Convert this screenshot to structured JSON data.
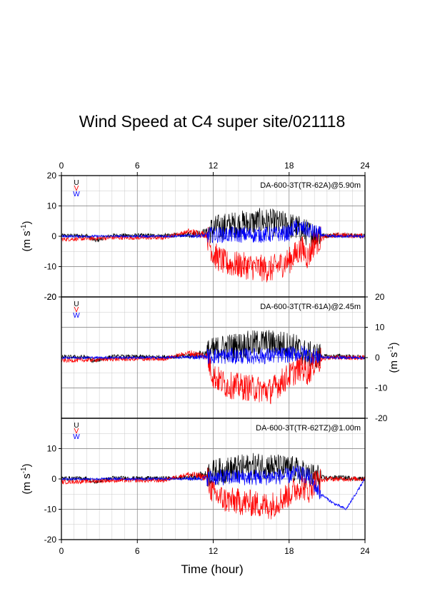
{
  "chart_data": {
    "type": "line",
    "title": "Wind Speed at C4 super site/021118",
    "xlabel": "Time (hour)",
    "x_ticks": [
      0,
      6,
      12,
      18,
      24
    ],
    "xlim": [
      0,
      24
    ],
    "grid": true,
    "legend_placement": "top-left",
    "series_legend": [
      {
        "name": "U",
        "color": "#000000"
      },
      {
        "name": "V",
        "color": "#ff0000"
      },
      {
        "name": "W",
        "color": "#0000ff"
      }
    ],
    "panels": [
      {
        "label": "DA-600-3T(TR-62A)@5.90m",
        "ylabel_main": "(m s",
        "ylabel_sup": "-1",
        "ylabel_end": ")",
        "ylabel_side": "left",
        "ylim": [
          -20,
          20
        ],
        "y_ticks": [
          -20,
          -10,
          0,
          10,
          20
        ],
        "series": [
          {
            "name": "U",
            "color": "#000000",
            "x": [
              0,
              2,
              2.7,
              4,
              8,
              10,
              11.5,
              12.5,
              14,
              16,
              17.5,
              18.5,
              19.5,
              20,
              21,
              22,
              24
            ],
            "y": [
              0.2,
              0.2,
              -1.5,
              0.3,
              0.2,
              0.5,
              1.5,
              3,
              4,
              5,
              4,
              3,
              1,
              0.5,
              0.2,
              0.5,
              0
            ]
          },
          {
            "name": "V",
            "color": "#ff0000",
            "x": [
              0,
              2,
              4,
              8,
              10,
              11.5,
              12,
              13,
              15,
              16.5,
              18,
              19,
              19.5,
              20,
              21,
              22,
              24
            ],
            "y": [
              -1,
              -0.8,
              -0.5,
              -0.5,
              1.5,
              0.5,
              -6,
              -9,
              -10,
              -11,
              -8,
              -4,
              -7,
              -2,
              0,
              0.5,
              0
            ]
          },
          {
            "name": "W",
            "color": "#0000ff",
            "x": [
              0,
              4,
              8,
              11,
              12,
              14,
              16,
              18,
              18.5,
              19.5,
              20.5,
              21,
              24
            ],
            "y": [
              0,
              0,
              0,
              0.2,
              0.5,
              0.5,
              0.5,
              1,
              3,
              2,
              0.5,
              0,
              0
            ]
          }
        ]
      },
      {
        "label": "DA-600-3T(TR-61A)@2.45m",
        "ylabel_main": "(m s",
        "ylabel_sup": "-1",
        "ylabel_end": ")",
        "ylabel_side": "right",
        "ylim": [
          -20,
          20
        ],
        "y_ticks": [
          -20,
          -10,
          0,
          10,
          20
        ],
        "series": [
          {
            "name": "U",
            "color": "#000000",
            "x": [
              0,
              2,
              2.5,
              4,
              8,
              10,
              11.5,
              12.5,
              14,
              16,
              17.5,
              18.5,
              19.5,
              21,
              22,
              24
            ],
            "y": [
              0.2,
              0.2,
              -1.2,
              0.3,
              0.2,
              0.5,
              1.5,
              3,
              4,
              5,
              4.5,
              3.5,
              1,
              0.3,
              0.5,
              0
            ]
          },
          {
            "name": "V",
            "color": "#ff0000",
            "x": [
              0,
              2,
              4,
              8,
              10,
              11.5,
              12,
              13,
              15,
              16.5,
              18,
              19,
              19.5,
              20,
              21,
              24
            ],
            "y": [
              -1,
              -0.8,
              -0.5,
              -0.5,
              1.5,
              0.5,
              -6,
              -9,
              -10,
              -11,
              -6,
              -3,
              -5,
              -1.5,
              0,
              0
            ]
          },
          {
            "name": "W",
            "color": "#0000ff",
            "x": [
              0,
              4,
              8,
              11,
              12,
              14,
              16,
              18,
              19,
              20,
              21,
              24
            ],
            "y": [
              0,
              0,
              0,
              0.2,
              0.5,
              0.5,
              0.5,
              1,
              1.5,
              0.5,
              0,
              0
            ]
          }
        ]
      },
      {
        "label": "DA-600-3T(TR-62TZ)@1.00m",
        "ylabel_main": "(m s",
        "ylabel_sup": "-1",
        "ylabel_end": ")",
        "ylabel_side": "left",
        "ylim": [
          -20,
          20
        ],
        "y_ticks": [
          -20,
          -10,
          0,
          10,
          20
        ],
        "series": [
          {
            "name": "U",
            "color": "#000000",
            "x": [
              0,
              2,
              2.5,
              4,
              8,
              10,
              11.5,
              12.5,
              14,
              16,
              17.5,
              18.5,
              19.5,
              21,
              22,
              24
            ],
            "y": [
              0.2,
              0.2,
              -1.2,
              0.3,
              0.2,
              0.5,
              1.5,
              2.5,
              3.5,
              4.5,
              3.5,
              3,
              1,
              0.3,
              0.5,
              0
            ]
          },
          {
            "name": "V",
            "color": "#ff0000",
            "x": [
              0,
              2,
              4,
              8,
              10,
              11.5,
              12,
              13,
              15,
              16.5,
              18,
              19,
              19.5,
              20,
              21,
              24
            ],
            "y": [
              -1,
              -0.8,
              -0.5,
              -0.5,
              1.5,
              0.5,
              -5,
              -7,
              -8,
              -9,
              -5,
              -2,
              -4,
              -1,
              0,
              0
            ]
          },
          {
            "name": "W",
            "color": "#0000ff",
            "x": [
              0,
              4,
              8,
              11,
              12,
              14,
              16,
              18,
              18.5,
              19.5,
              20.5,
              21.5,
              22.5,
              24
            ],
            "y": [
              0,
              0,
              0,
              0.2,
              0.5,
              0.5,
              0.5,
              1,
              2,
              1,
              -5,
              -8,
              -10,
              0
            ]
          }
        ]
      }
    ]
  }
}
